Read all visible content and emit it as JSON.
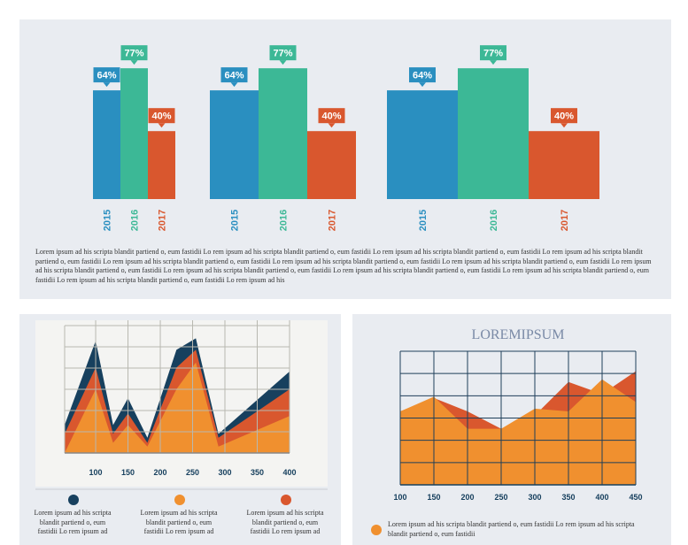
{
  "chart_data": [
    {
      "type": "bar",
      "categories": [
        "2015",
        "2016",
        "2017"
      ],
      "values": [
        64,
        77,
        40
      ],
      "value_labels": [
        "64%",
        "77%",
        "40%"
      ],
      "colors": [
        "#2a8fc0",
        "#3cb896",
        "#d9572e"
      ]
    },
    {
      "type": "bar",
      "categories": [
        "2015",
        "2016",
        "2017"
      ],
      "values": [
        64,
        77,
        40
      ],
      "value_labels": [
        "64%",
        "77%",
        "40%"
      ],
      "colors": [
        "#2a8fc0",
        "#3cb896",
        "#d9572e"
      ]
    },
    {
      "type": "bar",
      "categories": [
        "2015",
        "2016",
        "2017"
      ],
      "values": [
        64,
        77,
        40
      ],
      "value_labels": [
        "64%",
        "77%",
        "40%"
      ],
      "colors": [
        "#2a8fc0",
        "#3cb896",
        "#d9572e"
      ]
    },
    {
      "type": "area",
      "x": [
        52,
        100,
        127,
        150,
        180,
        225,
        255,
        290,
        400
      ],
      "xlim": [
        52,
        400
      ],
      "xticks": [
        100,
        150,
        200,
        250,
        300,
        350,
        400
      ],
      "ylim": [
        0,
        100
      ],
      "grid": true,
      "series": [
        {
          "name": "Lorem ipsum ad his scripta blandit partiend o, eum fastidii Lo rem ipsum ad his",
          "color": "#17405e",
          "values": [
            22,
            88,
            22,
            43,
            12,
            81,
            90,
            15,
            64
          ]
        },
        {
          "name": "Lorem ipsum ad his scripta blandit partiend o, eum fastidii Lo rem ipsum ad his",
          "color": "#d9572e",
          "values": [
            15,
            67,
            15,
            31,
            8,
            67,
            81,
            12,
            50
          ]
        },
        {
          "name": "Lorem ipsum ad his scripta blandit partiend o, eum fastidii Lo rem ipsum ad his",
          "color": "#f0902f",
          "values": [
            0,
            50,
            8,
            22,
            5,
            50,
            71,
            5,
            29
          ]
        }
      ],
      "legend_colors": [
        "#17405e",
        "#f0902f",
        "#d9572e"
      ]
    },
    {
      "type": "area",
      "title": "LOREMIPSUM",
      "x": [
        100,
        150,
        200,
        250,
        300,
        350,
        400,
        450
      ],
      "xlim": [
        100,
        450
      ],
      "xticks": [
        100,
        150,
        200,
        250,
        300,
        350,
        400,
        450
      ],
      "ylim": [
        0,
        100
      ],
      "grid": true,
      "series": [
        {
          "color": "#d9572e",
          "values": [
            55,
            65,
            55,
            42,
            52,
            77,
            68,
            85
          ]
        },
        {
          "color": "#f0902f",
          "values": [
            55,
            66,
            42,
            42,
            57,
            55,
            79,
            62
          ]
        }
      ],
      "note": "Lorem ipsum ad his scripta blandit partiend o, eum fastidii Lo rem ipsum ad his scripta blandit partiend o, eum fastidii"
    }
  ],
  "paragraph": "Lorem ipsum ad his scripta blandit partiend o, eum fastidii Lo rem ipsum ad his scripta blandit partiend o, eum fastidii Lo rem ipsum ad his scripta blandit partiend o, eum fastidii Lo rem ipsum ad his scripta blandit partiend o, eum fastidii Lo rem ipsum ad his scripta blandit partiend o, eum fastidii Lo rem ipsum ad his scripta blandit partiend o, eum fastidii Lo rem ipsum ad his scripta blandit partiend o, eum fastidii Lo rem ipsum ad his scripta blandit partiend o, eum fastidii Lo rem ipsum ad his scripta blandit partiend o, eum fastidii Lo rem ipsum ad his scripta blandit partiend o, eum fastidii Lo rem ipsum ad his scripta blandit partiend o, eum fastidii Lo rem ipsum ad his scripta blandit partiend o, eum fastidii Lo rem ipsum ad his"
}
